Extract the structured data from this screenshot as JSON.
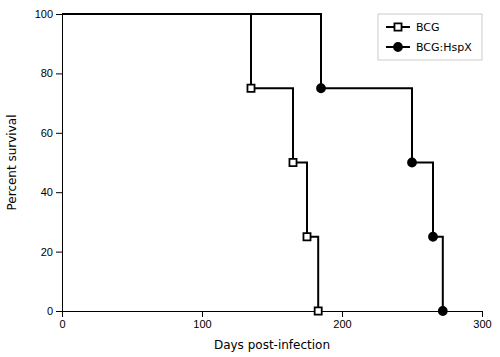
{
  "chart_data": {
    "type": "line",
    "xlabel": "Days post-infection",
    "ylabel": "Percent survival",
    "xlim": [
      0,
      300
    ],
    "ylim": [
      0,
      100
    ],
    "xticks": [
      0,
      100,
      200,
      300
    ],
    "yticks": [
      0,
      20,
      40,
      60,
      80,
      100
    ],
    "grid": false,
    "legend": "upper right",
    "series": [
      {
        "name": "BCG",
        "color": "#000000",
        "marker": "square-open",
        "x": [
          0,
          135,
          135,
          165,
          165,
          175,
          175,
          183,
          183
        ],
        "values": [
          100,
          100,
          75,
          75,
          50,
          50,
          25,
          25,
          0
        ],
        "marker_x": [
          135,
          165,
          175,
          183
        ],
        "marker_values": [
          75,
          50,
          25,
          0
        ]
      },
      {
        "name": "BCG:HspX",
        "color": "#000000",
        "marker": "circle",
        "x": [
          0,
          185,
          185,
          250,
          250,
          265,
          265,
          272,
          272
        ],
        "values": [
          100,
          100,
          75,
          75,
          50,
          50,
          25,
          25,
          0
        ],
        "marker_x": [
          185,
          250,
          265,
          272
        ],
        "marker_values": [
          75,
          50,
          25,
          0
        ]
      }
    ]
  }
}
